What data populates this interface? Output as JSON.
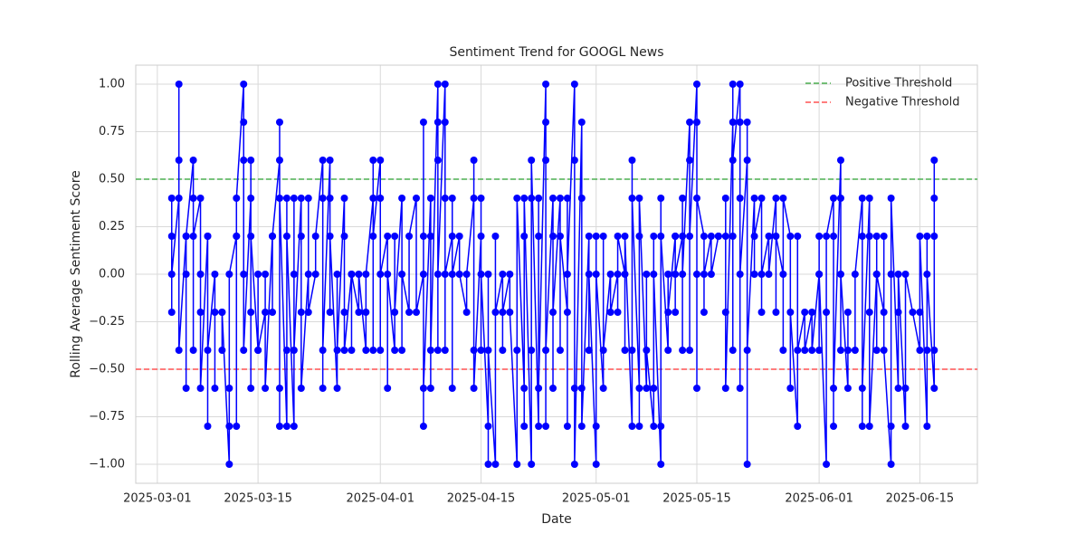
{
  "chart_data": {
    "type": "line",
    "title": "Sentiment Trend for GOOGL News",
    "x_label": "Date",
    "y_label": "Rolling Average Sentiment Score",
    "x": [
      "2025-03-03",
      "2025-03-03",
      "2025-03-03",
      "2025-03-03",
      "2025-03-04",
      "2025-03-04",
      "2025-03-04",
      "2025-03-04",
      "2025-03-05",
      "2025-03-05",
      "2025-03-05",
      "2025-03-05",
      "2025-03-06",
      "2025-03-06",
      "2025-03-06",
      "2025-03-06",
      "2025-03-07",
      "2025-03-07",
      "2025-03-07",
      "2025-03-07",
      "2025-03-08",
      "2025-03-08",
      "2025-03-08",
      "2025-03-08",
      "2025-03-09",
      "2025-03-09",
      "2025-03-09",
      "2025-03-10",
      "2025-03-10",
      "2025-03-10",
      "2025-03-11",
      "2025-03-11",
      "2025-03-11",
      "2025-03-11",
      "2025-03-12",
      "2025-03-12",
      "2025-03-12",
      "2025-03-12",
      "2025-03-13",
      "2025-03-13",
      "2025-03-13",
      "2025-03-13",
      "2025-03-13",
      "2025-03-14",
      "2025-03-14",
      "2025-03-14",
      "2025-03-14",
      "2025-03-14",
      "2025-03-15",
      "2025-03-15",
      "2025-03-15",
      "2025-03-16",
      "2025-03-16",
      "2025-03-16",
      "2025-03-17",
      "2025-03-17",
      "2025-03-17",
      "2025-03-18",
      "2025-03-18",
      "2025-03-18",
      "2025-03-18",
      "2025-03-18",
      "2025-03-19",
      "2025-03-19",
      "2025-03-19",
      "2025-03-19",
      "2025-03-20",
      "2025-03-20",
      "2025-03-20",
      "2025-03-20",
      "2025-03-21",
      "2025-03-21",
      "2025-03-21",
      "2025-03-21",
      "2025-03-22",
      "2025-03-22",
      "2025-03-22",
      "2025-03-23",
      "2025-03-23",
      "2025-03-24",
      "2025-03-24",
      "2025-03-24",
      "2025-03-24",
      "2025-03-25",
      "2025-03-25",
      "2025-03-25",
      "2025-03-25",
      "2025-03-26",
      "2025-03-26",
      "2025-03-26",
      "2025-03-27",
      "2025-03-27",
      "2025-03-27",
      "2025-03-27",
      "2025-03-28",
      "2025-03-28",
      "2025-03-28",
      "2025-03-29",
      "2025-03-29",
      "2025-03-30",
      "2025-03-30",
      "2025-03-30",
      "2025-03-31",
      "2025-03-31",
      "2025-03-31",
      "2025-03-31",
      "2025-04-01",
      "2025-04-01",
      "2025-04-01",
      "2025-04-01",
      "2025-04-02",
      "2025-04-02",
      "2025-04-02",
      "2025-04-03",
      "2025-04-03",
      "2025-04-03",
      "2025-04-04",
      "2025-04-04",
      "2025-04-04",
      "2025-04-05",
      "2025-04-05",
      "2025-04-06",
      "2025-04-06",
      "2025-04-07",
      "2025-04-07",
      "2025-04-07",
      "2025-04-07",
      "2025-04-07",
      "2025-04-08",
      "2025-04-08",
      "2025-04-08",
      "2025-04-08",
      "2025-04-09",
      "2025-04-09",
      "2025-04-09",
      "2025-04-09",
      "2025-04-09",
      "2025-04-10",
      "2025-04-10",
      "2025-04-10",
      "2025-04-10",
      "2025-04-10",
      "2025-04-11",
      "2025-04-11",
      "2025-04-11",
      "2025-04-11",
      "2025-04-12",
      "2025-04-12",
      "2025-04-13",
      "2025-04-13",
      "2025-04-14",
      "2025-04-14",
      "2025-04-14",
      "2025-04-14",
      "2025-04-15",
      "2025-04-15",
      "2025-04-15",
      "2025-04-15",
      "2025-04-16",
      "2025-04-16",
      "2025-04-16",
      "2025-04-16",
      "2025-04-17",
      "2025-04-17",
      "2025-04-17",
      "2025-04-18",
      "2025-04-18",
      "2025-04-18",
      "2025-04-19",
      "2025-04-19",
      "2025-04-20",
      "2025-04-20",
      "2025-04-20",
      "2025-04-21",
      "2025-04-21",
      "2025-04-21",
      "2025-04-21",
      "2025-04-22",
      "2025-04-22",
      "2025-04-22",
      "2025-04-22",
      "2025-04-23",
      "2025-04-23",
      "2025-04-23",
      "2025-04-23",
      "2025-04-24",
      "2025-04-24",
      "2025-04-24",
      "2025-04-24",
      "2025-04-24",
      "2025-04-25",
      "2025-04-25",
      "2025-04-25",
      "2025-04-25",
      "2025-04-26",
      "2025-04-26",
      "2025-04-26",
      "2025-04-27",
      "2025-04-27",
      "2025-04-27",
      "2025-04-27",
      "2025-04-28",
      "2025-04-28",
      "2025-04-28",
      "2025-04-28",
      "2025-04-29",
      "2025-04-29",
      "2025-04-29",
      "2025-04-29",
      "2025-04-30",
      "2025-04-30",
      "2025-04-30",
      "2025-05-01",
      "2025-05-01",
      "2025-05-01",
      "2025-05-01",
      "2025-05-02",
      "2025-05-02",
      "2025-05-02",
      "2025-05-03",
      "2025-05-03",
      "2025-05-04",
      "2025-05-04",
      "2025-05-04",
      "2025-05-05",
      "2025-05-05",
      "2025-05-05",
      "2025-05-06",
      "2025-05-06",
      "2025-05-06",
      "2025-05-06",
      "2025-05-07",
      "2025-05-07",
      "2025-05-07",
      "2025-05-07",
      "2025-05-08",
      "2025-05-08",
      "2025-05-08",
      "2025-05-09",
      "2025-05-09",
      "2025-05-09",
      "2025-05-09",
      "2025-05-10",
      "2025-05-10",
      "2025-05-10",
      "2025-05-10",
      "2025-05-11",
      "2025-05-11",
      "2025-05-11",
      "2025-05-12",
      "2025-05-12",
      "2025-05-12",
      "2025-05-12",
      "2025-05-13",
      "2025-05-13",
      "2025-05-13",
      "2025-05-13",
      "2025-05-14",
      "2025-05-14",
      "2025-05-14",
      "2025-05-14",
      "2025-05-15",
      "2025-05-15",
      "2025-05-15",
      "2025-05-15",
      "2025-05-15",
      "2025-05-16",
      "2025-05-16",
      "2025-05-16",
      "2025-05-17",
      "2025-05-17",
      "2025-05-18",
      "2025-05-18",
      "2025-05-19",
      "2025-05-19",
      "2025-05-19",
      "2025-05-19",
      "2025-05-20",
      "2025-05-20",
      "2025-05-20",
      "2025-05-20",
      "2025-05-20",
      "2025-05-21",
      "2025-05-21",
      "2025-05-21",
      "2025-05-21",
      "2025-05-21",
      "2025-05-22",
      "2025-05-22",
      "2025-05-22",
      "2025-05-22",
      "2025-05-23",
      "2025-05-23",
      "2025-05-23",
      "2025-05-24",
      "2025-05-24",
      "2025-05-24",
      "2025-05-25",
      "2025-05-25",
      "2025-05-26",
      "2025-05-26",
      "2025-05-26",
      "2025-05-27",
      "2025-05-27",
      "2025-05-27",
      "2025-05-28",
      "2025-05-28",
      "2025-05-28",
      "2025-05-29",
      "2025-05-29",
      "2025-05-29",
      "2025-05-30",
      "2025-05-30",
      "2025-05-31",
      "2025-05-31",
      "2025-06-01",
      "2025-06-01",
      "2025-06-01",
      "2025-06-01",
      "2025-06-02",
      "2025-06-02",
      "2025-06-02",
      "2025-06-03",
      "2025-06-03",
      "2025-06-03",
      "2025-06-03",
      "2025-06-04",
      "2025-06-04",
      "2025-06-04",
      "2025-06-04",
      "2025-06-05",
      "2025-06-05",
      "2025-06-05",
      "2025-06-06",
      "2025-06-06",
      "2025-06-07",
      "2025-06-07",
      "2025-06-07",
      "2025-06-07",
      "2025-06-08",
      "2025-06-08",
      "2025-06-08",
      "2025-06-08",
      "2025-06-09",
      "2025-06-09",
      "2025-06-09",
      "2025-06-09",
      "2025-06-10",
      "2025-06-10",
      "2025-06-10",
      "2025-06-11",
      "2025-06-11",
      "2025-06-11",
      "2025-06-11",
      "2025-06-12",
      "2025-06-12",
      "2025-06-12",
      "2025-06-13",
      "2025-06-13",
      "2025-06-13",
      "2025-06-14",
      "2025-06-15",
      "2025-06-15",
      "2025-06-15",
      "2025-06-16",
      "2025-06-16",
      "2025-06-16",
      "2025-06-16",
      "2025-06-17",
      "2025-06-17",
      "2025-06-17",
      "2025-06-17",
      "2025-06-17"
    ],
    "series": [
      {
        "color": "#0000ff",
        "values": [
          0.2,
          -0.2,
          0.4,
          0,
          0.4,
          1.0,
          0.6,
          -0.4,
          0.2,
          -0.6,
          0,
          0.2,
          0.6,
          -0.4,
          0.4,
          0.2,
          0.4,
          -0.2,
          0,
          -0.6,
          0.2,
          -0.8,
          0.2,
          -0.4,
          0,
          -0.6,
          -0.2,
          -0.2,
          -0.4,
          -0.2,
          -1.0,
          -0.6,
          -0.8,
          0,
          0.2,
          -0.8,
          0.2,
          0.4,
          1.0,
          0.6,
          0.8,
          0,
          -0.4,
          0.4,
          0.6,
          -0.2,
          -0.6,
          0.2,
          -0.4,
          0,
          -0.4,
          -0.2,
          0,
          -0.6,
          0.2,
          -0.2,
          0.2,
          0.6,
          -0.8,
          0.8,
          -0.6,
          0.4,
          -0.8,
          0.4,
          -0.4,
          0.2,
          -0.8,
          0.4,
          0,
          -0.4,
          0.4,
          -0.2,
          0.2,
          -0.6,
          0,
          0.4,
          -0.2,
          0,
          0.2,
          0.6,
          -0.6,
          0.4,
          -0.4,
          0.6,
          -0.2,
          0.4,
          0.2,
          -0.6,
          0,
          -0.4,
          0.4,
          -0.2,
          0.2,
          -0.4,
          0,
          -0.4,
          0,
          -0.2,
          0,
          -0.4,
          -0.2,
          0,
          0.4,
          0.6,
          -0.4,
          0.2,
          0.6,
          -0.4,
          0.4,
          0,
          0.2,
          -0.6,
          0,
          -0.4,
          0.2,
          -0.2,
          0.4,
          -0.4,
          0,
          -0.2,
          0.2,
          0.4,
          -0.2,
          0,
          0.2,
          -0.8,
          0.8,
          -0.6,
          0.4,
          -0.6,
          0.2,
          -0.4,
          1.0,
          0.6,
          -0.4,
          0.8,
          0,
          1.0,
          0.8,
          -0.4,
          0.4,
          0,
          0.2,
          -0.6,
          0.4,
          0,
          0.2,
          0,
          -0.2,
          0,
          0.4,
          -0.4,
          0.6,
          -0.6,
          0.2,
          -0.4,
          0.4,
          0,
          -0.8,
          -1.0,
          0,
          -0.4,
          -1.0,
          0.2,
          -0.2,
          0,
          -0.4,
          -0.2,
          0,
          -0.2,
          -1.0,
          -0.4,
          0.4,
          -0.6,
          0.2,
          -0.8,
          0.4,
          -1.0,
          0.4,
          -0.4,
          0.6,
          -0.8,
          0.4,
          0.2,
          -0.6,
          1.0,
          0.6,
          -0.8,
          0.8,
          -0.4,
          0.4,
          -0.6,
          0.2,
          -0.2,
          0.4,
          -0.4,
          0.2,
          -0.2,
          0.4,
          -0.8,
          0,
          1.0,
          -0.6,
          0.6,
          -1.0,
          0.8,
          -0.6,
          0.4,
          -0.8,
          0.2,
          -0.4,
          0,
          -1.0,
          0.2,
          -0.8,
          0,
          -0.6,
          0.2,
          -0.4,
          0,
          -0.2,
          0,
          -0.2,
          0.2,
          0,
          -0.4,
          0.2,
          -0.8,
          0.6,
          -0.4,
          0.4,
          -0.6,
          0.2,
          -0.8,
          0.4,
          -0.6,
          0,
          -0.4,
          -0.8,
          0.2,
          -0.6,
          0,
          -1.0,
          0.4,
          -0.8,
          0.2,
          -0.4,
          0,
          -0.2,
          0.2,
          -0.2,
          0.2,
          0,
          0.2,
          -0.4,
          0.4,
          0,
          0.8,
          -0.4,
          0.6,
          0.2,
          1.0,
          -0.6,
          0.8,
          0,
          0.4,
          0.2,
          -0.2,
          0,
          0.2,
          0,
          0.2,
          0.2,
          0.2,
          -0.2,
          0.4,
          -0.6,
          0.8,
          -0.4,
          1.0,
          0.2,
          0.6,
          1.0,
          -0.6,
          0.8,
          0.4,
          0,
          0.6,
          -1.0,
          0.8,
          -0.4,
          0.4,
          0,
          0.2,
          0.4,
          -0.2,
          0,
          0.2,
          0,
          0.4,
          -0.2,
          0.2,
          0,
          -0.4,
          0.4,
          0.2,
          -0.6,
          -0.2,
          -0.8,
          0.2,
          -0.4,
          -0.2,
          -0.4,
          -0.2,
          -0.4,
          0,
          0.2,
          -0.4,
          0,
          -1.0,
          -0.2,
          0.2,
          0.4,
          -0.8,
          0.2,
          -0.6,
          0.6,
          -0.4,
          0.4,
          0,
          -0.6,
          -0.2,
          -0.4,
          -0.4,
          0,
          0.4,
          -0.8,
          0.2,
          -0.6,
          0.4,
          -0.2,
          0.2,
          -0.8,
          0,
          -0.4,
          0.2,
          0,
          -0.2,
          0.2,
          -0.4,
          -1.0,
          -0.8,
          0,
          0.4,
          -0.6,
          -0.2,
          0,
          -0.8,
          -0.6,
          0,
          -0.2,
          -0.4,
          -0.2,
          0.2,
          -0.8,
          -0.4,
          0.2,
          0,
          -0.6,
          0.4,
          0.6,
          0.2,
          -0.4
        ]
      }
    ],
    "thresholds": [
      {
        "name": "Positive Threshold",
        "value": 0.5,
        "color": "#4caf50"
      },
      {
        "name": "Negative Threshold",
        "value": -0.5,
        "color": "#ff5252"
      }
    ],
    "xlim": [
      "2025-02-26",
      "2025-06-23"
    ],
    "xticks": [
      "2025-03-01",
      "2025-03-15",
      "2025-04-01",
      "2025-04-15",
      "2025-05-01",
      "2025-05-15",
      "2025-06-01",
      "2025-06-15"
    ],
    "ylim": [
      -1.1,
      1.1
    ],
    "yticks": [
      {
        "value": -1,
        "label": "−1.00"
      },
      {
        "value": -0.75,
        "label": "−0.75"
      },
      {
        "value": -0.5,
        "label": "−0.50"
      },
      {
        "value": -0.25,
        "label": "−0.25"
      },
      {
        "value": 0,
        "label": "0.00"
      },
      {
        "value": 0.25,
        "label": "0.25"
      },
      {
        "value": 0.5,
        "label": "0.50"
      },
      {
        "value": 0.75,
        "label": "0.75"
      },
      {
        "value": 1,
        "label": "1.00"
      }
    ],
    "grid": true,
    "legend": "upper right"
  }
}
